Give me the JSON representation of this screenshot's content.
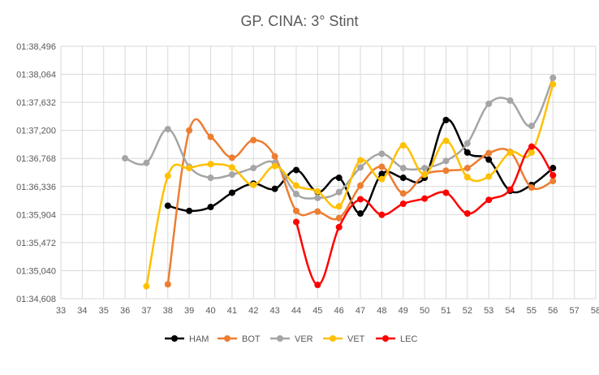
{
  "chart_data": {
    "type": "line",
    "title": "GP. CINA: 3° Stint",
    "xlabel": "",
    "ylabel": "",
    "x_ticks": [
      33,
      34,
      35,
      36,
      37,
      38,
      39,
      40,
      41,
      42,
      43,
      44,
      45,
      46,
      47,
      48,
      49,
      50,
      51,
      52,
      53,
      54,
      55,
      56,
      57,
      58
    ],
    "y_tick_values": [
      94.608,
      95.04,
      95.472,
      95.904,
      96.336,
      96.768,
      97.2,
      97.632,
      98.064,
      98.496
    ],
    "y_tick_labels": [
      "01:34,608",
      "01:35,040",
      "01:35,472",
      "01:35,904",
      "01:36,336",
      "01:36,768",
      "01:37,200",
      "01:37,632",
      "01:38,064",
      "01:38,496"
    ],
    "xlim": [
      33,
      58
    ],
    "ylim": [
      94.608,
      98.496
    ],
    "grid": "both",
    "legend_position": "bottom",
    "series": [
      {
        "name": "HAM",
        "color": "#000000",
        "points": [
          [
            38,
            96.04
          ],
          [
            39,
            95.96
          ],
          [
            40,
            96.02
          ],
          [
            41,
            96.24
          ],
          [
            42,
            96.38
          ],
          [
            43,
            96.3
          ],
          [
            44,
            96.59
          ],
          [
            45,
            96.25
          ],
          [
            46,
            96.47
          ],
          [
            47,
            95.92
          ],
          [
            48,
            96.53
          ],
          [
            49,
            96.47
          ],
          [
            50,
            96.47
          ],
          [
            51,
            97.36
          ],
          [
            52,
            96.86
          ],
          [
            53,
            96.75
          ],
          [
            54,
            96.27
          ],
          [
            55,
            96.36
          ],
          [
            56,
            96.62
          ]
        ]
      },
      {
        "name": "BOT",
        "color": "#ED7D31",
        "points": [
          [
            38,
            94.83
          ],
          [
            39,
            97.2
          ],
          [
            40,
            97.1
          ],
          [
            41,
            96.78
          ],
          [
            42,
            97.05
          ],
          [
            43,
            96.8
          ],
          [
            44,
            95.96
          ],
          [
            45,
            95.95
          ],
          [
            46,
            95.85
          ],
          [
            47,
            96.35
          ],
          [
            48,
            96.64
          ],
          [
            49,
            96.23
          ],
          [
            50,
            96.52
          ],
          [
            51,
            96.58
          ],
          [
            52,
            96.62
          ],
          [
            53,
            96.85
          ],
          [
            54,
            96.87
          ],
          [
            55,
            96.32
          ],
          [
            56,
            96.42
          ]
        ]
      },
      {
        "name": "VER",
        "color": "#A5A5A5",
        "points": [
          [
            36,
            96.77
          ],
          [
            37,
            96.7
          ],
          [
            38,
            97.22
          ],
          [
            39,
            96.64
          ],
          [
            40,
            96.47
          ],
          [
            41,
            96.52
          ],
          [
            42,
            96.62
          ],
          [
            43,
            96.7
          ],
          [
            44,
            96.22
          ],
          [
            45,
            96.16
          ],
          [
            46,
            96.25
          ],
          [
            47,
            96.63
          ],
          [
            48,
            96.84
          ],
          [
            49,
            96.62
          ],
          [
            50,
            96.62
          ],
          [
            51,
            96.73
          ],
          [
            52,
            97.0
          ],
          [
            53,
            97.61
          ],
          [
            54,
            97.66
          ],
          [
            55,
            97.27
          ],
          [
            56,
            98.01
          ]
        ]
      },
      {
        "name": "VET",
        "color": "#FFC000",
        "points": [
          [
            37,
            94.8
          ],
          [
            38,
            96.5
          ],
          [
            39,
            96.62
          ],
          [
            40,
            96.68
          ],
          [
            41,
            96.63
          ],
          [
            42,
            96.36
          ],
          [
            43,
            96.65
          ],
          [
            44,
            96.35
          ],
          [
            45,
            96.26
          ],
          [
            46,
            96.03
          ],
          [
            47,
            96.74
          ],
          [
            48,
            96.45
          ],
          [
            49,
            96.97
          ],
          [
            50,
            96.52
          ],
          [
            51,
            97.04
          ],
          [
            52,
            96.48
          ],
          [
            53,
            96.49
          ],
          [
            54,
            96.86
          ],
          [
            55,
            96.86
          ],
          [
            56,
            97.91
          ]
        ]
      },
      {
        "name": "LEC",
        "color": "#FF0000",
        "points": [
          [
            44,
            95.79
          ],
          [
            45,
            94.82
          ],
          [
            46,
            95.71
          ],
          [
            47,
            96.14
          ],
          [
            48,
            95.9
          ],
          [
            49,
            96.07
          ],
          [
            50,
            96.15
          ],
          [
            51,
            96.24
          ],
          [
            52,
            95.92
          ],
          [
            53,
            96.13
          ],
          [
            54,
            96.29
          ],
          [
            55,
            96.95
          ],
          [
            56,
            96.51
          ]
        ]
      }
    ]
  }
}
